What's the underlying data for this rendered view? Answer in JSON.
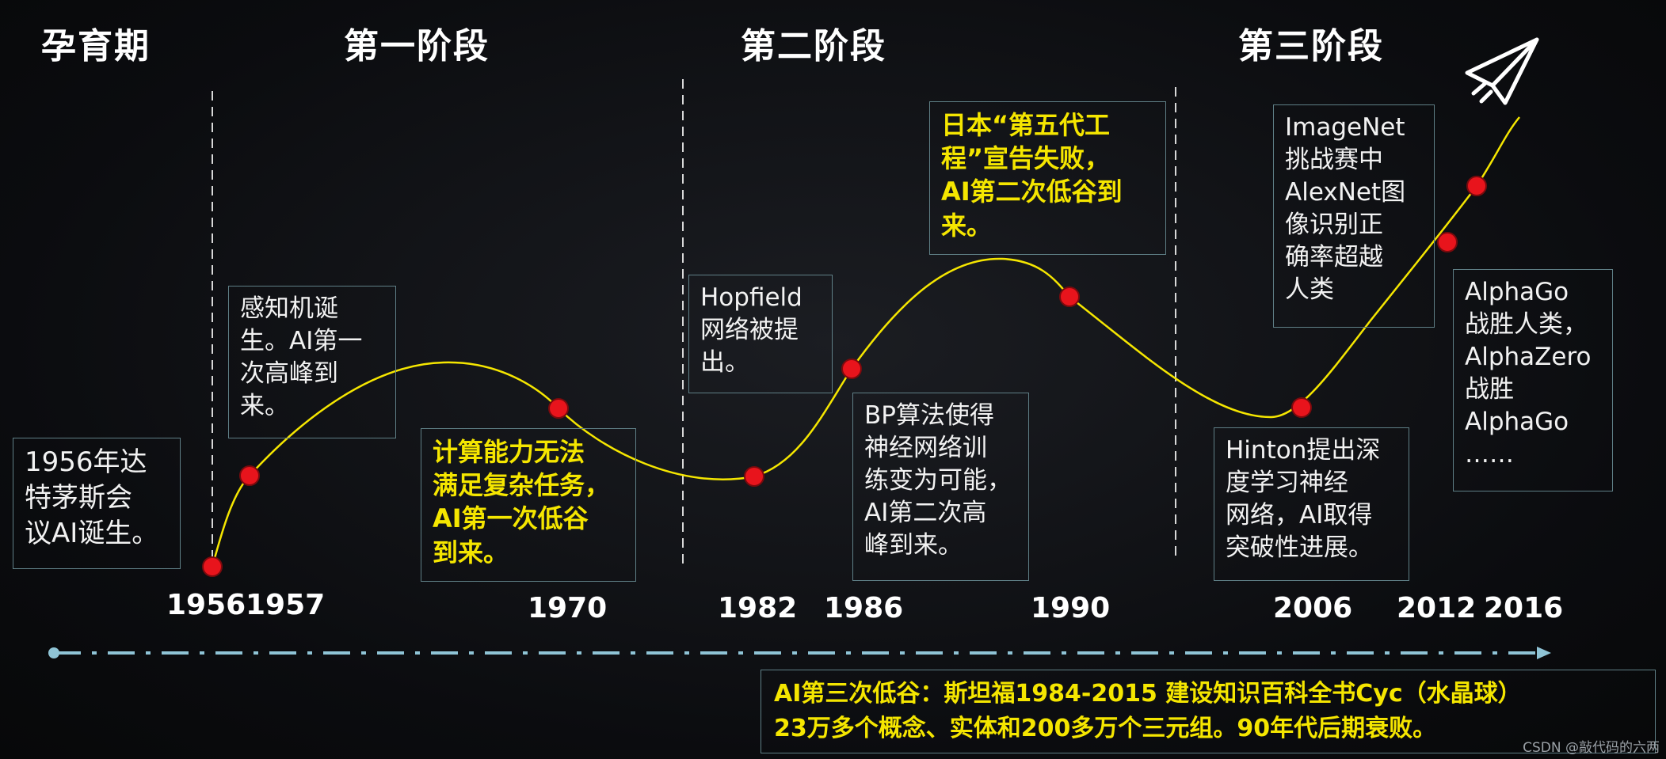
{
  "phases": [
    "孕育期",
    "第一阶段",
    "第二阶段",
    "第三阶段"
  ],
  "boxes": {
    "b1956": "1956年达\n特茅斯会\n议AI诞生。",
    "b1957": "感知机诞\n生。AI第一\n次高峰到\n来。",
    "b1970": "计算能力无法\n满足复杂任务，\nAI第一次低谷\n到来。",
    "b1982": "Hopfield\n网络被提\n出。",
    "b1986": "BP算法使得\n神经网络训\n练变为可能，\nAI第二次高\n峰到来。",
    "b1990": "日本“第五代工\n程”宣告失败，\nAI第二次低谷到\n来。",
    "b2006": "Hinton提出深\n度学习神经\n网络，AI取得\n突破性进展。",
    "b2012": "ImageNet\n挑战赛中\nAlexNet图\n像识别正\n确率超越\n人类",
    "b2016": "AlphaGo\n战胜人类，\nAlphaZero\n战胜\nAlphaGo\n……"
  },
  "years": [
    "1956",
    "1957",
    "1970",
    "1982",
    "1986",
    "1990",
    "2006",
    "2012",
    "2016"
  ],
  "bottom": {
    "line1": "AI第三次低谷：斯坦福1984-2015 建设知识百科全书Cyc（水晶球）",
    "line2": "23万多个概念、实体和200多万个三元组。90年代后期衰败。"
  },
  "watermark": "CSDN @敲代码的六两",
  "icons": {
    "plane": "paper-plane-icon"
  },
  "colors": {
    "curve": "#f5e600",
    "dot": "#e8141c",
    "timeline": "#8fc4d6",
    "yellow_text": "#f5e600"
  }
}
